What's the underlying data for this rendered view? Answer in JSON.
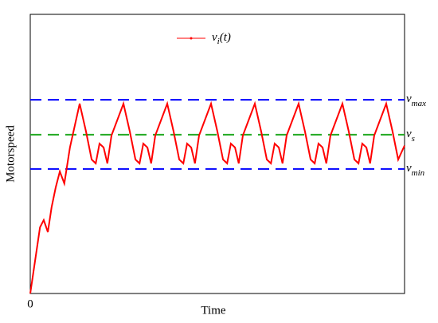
{
  "chart_data": {
    "type": "line",
    "x_label": "Time",
    "y_label": "Motorspeed",
    "xlim": [
      0,
      100
    ],
    "ylim": [
      0,
      100
    ],
    "xticks": [
      0
    ],
    "series": [
      {
        "name": "v",
        "name_sub": "i",
        "name_suffix": "(t)",
        "color": "#ff0000",
        "x": [
          0,
          2.6,
          3.6,
          4.7,
          5.7,
          6.8,
          7.9,
          9.1,
          10.6,
          13.2,
          14.9,
          16.4,
          17.5,
          18.5,
          19.6,
          20.6,
          21.7,
          24.9,
          26.6,
          28.1,
          29.2,
          30.2,
          31.3,
          32.3,
          33.4,
          36.6,
          38.3,
          39.8,
          40.9,
          41.9,
          43,
          44,
          45.1,
          48.3,
          50,
          51.5,
          52.6,
          53.6,
          54.7,
          55.7,
          56.8,
          60,
          61.7,
          63.2,
          64.3,
          65.3,
          66.4,
          67.4,
          68.5,
          71.7,
          73.4,
          74.9,
          76,
          77,
          78.1,
          79.1,
          80.2,
          83.4,
          85.1,
          86.6,
          87.7,
          88.7,
          89.8,
          90.8,
          91.9,
          95.1,
          96.8,
          98.3,
          100
        ],
        "values": [
          0,
          23.7,
          26.3,
          22,
          30.9,
          38,
          43.7,
          39.4,
          52.3,
          68,
          58,
          48,
          46.6,
          53.7,
          52.3,
          46.6,
          56.6,
          68,
          58,
          48,
          46.6,
          53.7,
          52.3,
          46.6,
          56.6,
          68,
          58,
          48,
          46.6,
          53.7,
          52.3,
          46.6,
          56.6,
          68,
          58,
          48,
          46.6,
          53.7,
          52.3,
          46.6,
          56.6,
          68,
          58,
          48,
          46.6,
          53.7,
          52.3,
          46.6,
          56.6,
          68,
          58,
          48,
          46.6,
          53.7,
          52.3,
          46.6,
          56.6,
          68,
          58,
          48,
          46.6,
          53.7,
          52.3,
          46.6,
          56.6,
          68,
          58,
          48,
          53
        ]
      }
    ],
    "reference_lines": [
      {
        "label": "v",
        "sub": "max",
        "value": 69.4,
        "color": "#0000ff"
      },
      {
        "label": "v",
        "sub": "s",
        "value": 56.9,
        "color": "#22aa22"
      },
      {
        "label": "v",
        "sub": "min",
        "value": 44.6,
        "color": "#0000ff"
      }
    ]
  }
}
